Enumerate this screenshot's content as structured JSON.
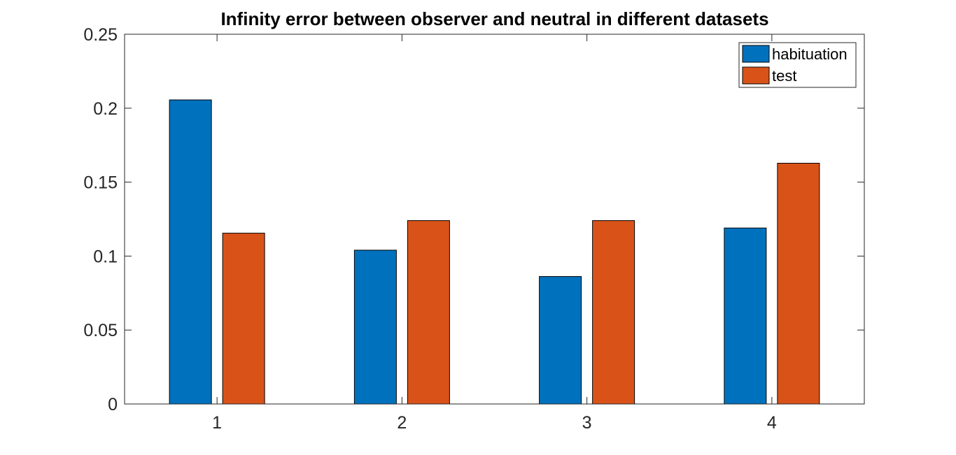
{
  "chart_data": {
    "type": "bar",
    "title": "Infinity error between observer and neutral in different datasets",
    "xlabel": "",
    "ylabel": "",
    "categories": [
      "1",
      "2",
      "3",
      "4"
    ],
    "series": [
      {
        "name": "habituation",
        "color": "#0072BD",
        "values": [
          0.2056,
          0.104,
          0.0862,
          0.119
        ]
      },
      {
        "name": "test",
        "color": "#D95319",
        "values": [
          0.1155,
          0.124,
          0.124,
          0.1628
        ]
      }
    ],
    "ylim": [
      0,
      0.25
    ],
    "yticks": [
      "0",
      "0.05",
      "0.1",
      "0.15",
      "0.2",
      "0.25"
    ],
    "grid": false,
    "legend_position": "top-right"
  }
}
